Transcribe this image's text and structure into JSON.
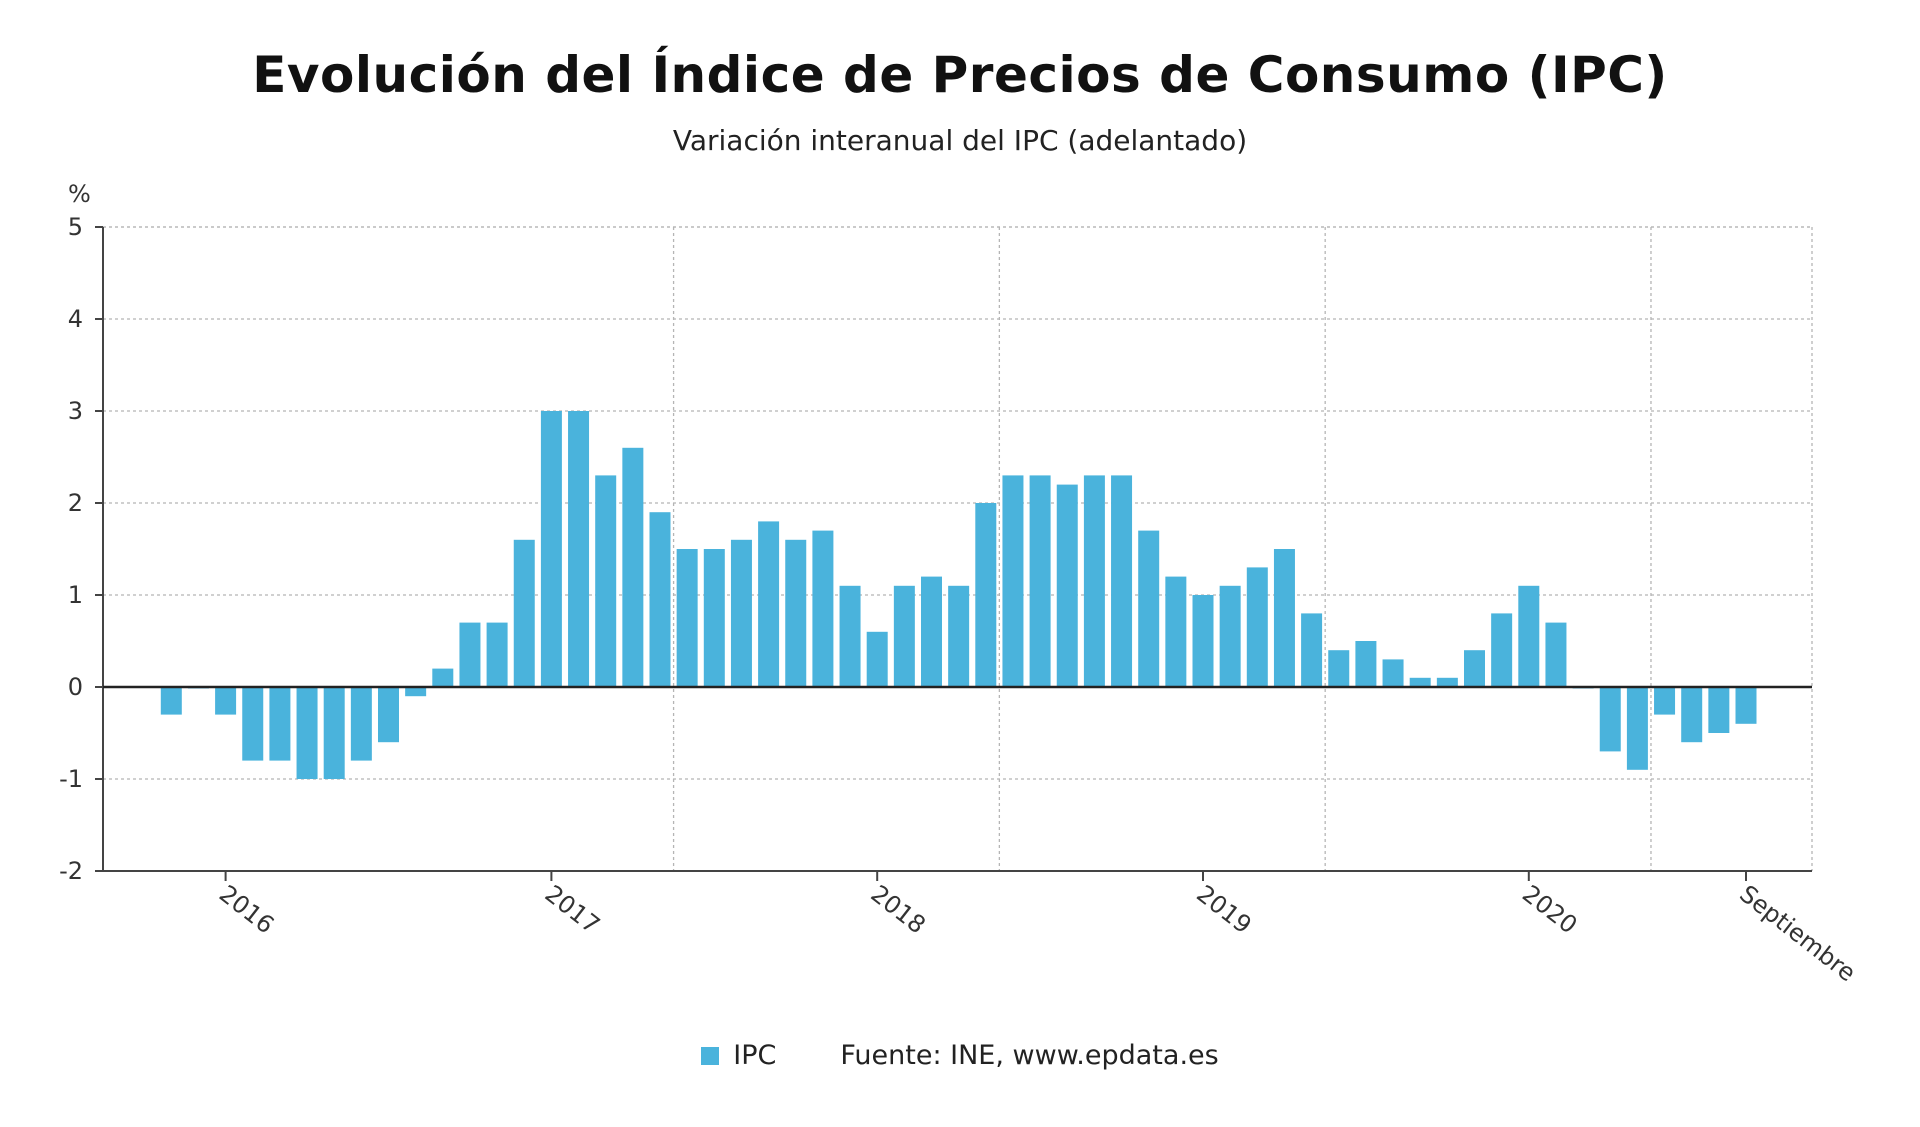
{
  "chart_data": {
    "type": "bar",
    "title": "Evolución del Índice de Precios de Consumo (IPC)",
    "subtitle": "Variación interanual del IPC (adelantado)",
    "ylabel": "%",
    "xlabel": "",
    "ylim": [
      -2,
      5
    ],
    "yticks": [
      "5",
      "4",
      "3",
      "2",
      "1",
      "0",
      "-1",
      "-2"
    ],
    "grid": true,
    "series": [
      {
        "name": "IPC",
        "color": "#4ab3dc",
        "values": [
          -0.3,
          0.0,
          -0.3,
          -0.8,
          -0.8,
          -1.0,
          -1.0,
          -0.8,
          -0.6,
          -0.1,
          0.2,
          0.7,
          0.7,
          1.6,
          3.0,
          3.0,
          2.3,
          2.6,
          1.9,
          1.5,
          1.5,
          1.6,
          1.8,
          1.6,
          1.7,
          1.1,
          0.6,
          1.1,
          1.2,
          1.1,
          2.0,
          2.3,
          2.3,
          2.2,
          2.3,
          2.3,
          1.7,
          1.2,
          1.0,
          1.1,
          1.3,
          1.5,
          0.8,
          0.4,
          0.5,
          0.3,
          0.1,
          0.1,
          0.4,
          0.8,
          1.1,
          0.7,
          0.0,
          -0.7,
          -0.9,
          -0.3,
          -0.6,
          -0.5,
          -0.4
        ]
      }
    ],
    "x_labels": [
      {
        "label": "2016",
        "index": 2
      },
      {
        "label": "2017",
        "index": 14
      },
      {
        "label": "2018",
        "index": 26
      },
      {
        "label": "2019",
        "index": 38
      },
      {
        "label": "2020",
        "index": 50
      },
      {
        "label": "Septiembre",
        "index": 58
      }
    ],
    "legend": {
      "position": "bottom-center",
      "entries": [
        "IPC"
      ]
    },
    "source": "Fuente: INE, www.epdata.es"
  }
}
